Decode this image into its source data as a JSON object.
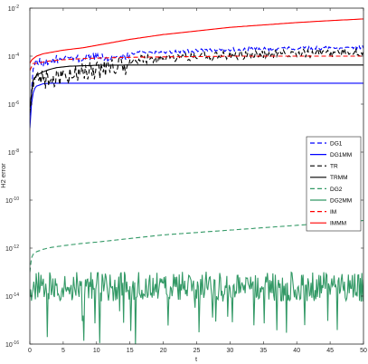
{
  "chart_data": {
    "type": "line",
    "title": "",
    "xlabel": "t",
    "ylabel": "H2 error",
    "xlim": [
      0,
      50
    ],
    "ylim_log10": [
      -16,
      -2
    ],
    "y_scale": "log",
    "grid": false,
    "legend_position": "right",
    "x_ticks": [
      {
        "value": 0,
        "label": "0"
      },
      {
        "value": 5,
        "label": "5"
      },
      {
        "value": 10,
        "label": "10"
      },
      {
        "value": 15,
        "label": "15"
      },
      {
        "value": 20,
        "label": "20"
      },
      {
        "value": 25,
        "label": "25"
      },
      {
        "value": 30,
        "label": "30"
      },
      {
        "value": 35,
        "label": "35"
      },
      {
        "value": 40,
        "label": "40"
      },
      {
        "value": 45,
        "label": "45"
      },
      {
        "value": 50,
        "label": "50"
      }
    ],
    "y_ticks": [
      {
        "exp": -16,
        "base": "10",
        "sup": "-16"
      },
      {
        "exp": -14,
        "base": "10",
        "sup": "-14"
      },
      {
        "exp": -12,
        "base": "10",
        "sup": "-12"
      },
      {
        "exp": -10,
        "base": "10",
        "sup": "-10"
      },
      {
        "exp": -8,
        "base": "10",
        "sup": "-8"
      },
      {
        "exp": -6,
        "base": "10",
        "sup": "-6"
      },
      {
        "exp": -4,
        "base": "10",
        "sup": "-4"
      },
      {
        "exp": -2,
        "base": "10",
        "sup": "-2"
      }
    ],
    "series": [
      {
        "name": "DG1",
        "color": "#0000ff",
        "dash": "dashed",
        "x": [
          0,
          0.5,
          1,
          1.5,
          2,
          2.5,
          3,
          4,
          5,
          6,
          8,
          10,
          12,
          15,
          20,
          25,
          30,
          35,
          40,
          45,
          50
        ],
        "y_log10": [
          -6.5,
          -4.3,
          -4.1,
          -4.05,
          -4.15,
          -4.0,
          -4.1,
          -3.95,
          -4.0,
          -3.9,
          -3.95,
          -3.85,
          -3.9,
          -3.8,
          -3.75,
          -3.7,
          -3.65,
          -3.62,
          -3.6,
          -3.58,
          -3.55
        ],
        "oscillation": 0.25
      },
      {
        "name": "DG1MM",
        "color": "#0000ff",
        "dash": "solid",
        "x": [
          0,
          0.3,
          0.6,
          1,
          1.5,
          2,
          3,
          50
        ],
        "y_log10": [
          -7.0,
          -5.8,
          -5.4,
          -5.25,
          -5.2,
          -5.15,
          -5.13,
          -5.13
        ],
        "oscillation": 0
      },
      {
        "name": "TR",
        "color": "#000000",
        "dash": "dashed",
        "x": [
          0,
          0.5,
          1,
          2,
          3,
          4,
          5,
          6,
          8,
          10,
          12,
          15,
          20,
          25,
          30,
          35,
          40,
          45,
          50
        ],
        "y_log10": [
          -6.0,
          -4.6,
          -4.5,
          -4.6,
          -4.55,
          -4.5,
          -4.45,
          -4.4,
          -4.3,
          -4.2,
          -4.1,
          -4.0,
          -3.9,
          -3.85,
          -3.8,
          -3.75,
          -3.7,
          -3.68,
          -3.65
        ],
        "oscillation": 0.6
      },
      {
        "name": "TRMM",
        "color": "#000000",
        "dash": "solid",
        "x": [
          0,
          0.5,
          1,
          2,
          3,
          4,
          6,
          8,
          10,
          15,
          50
        ],
        "y_log10": [
          -6.2,
          -5.0,
          -4.8,
          -4.65,
          -4.55,
          -4.48,
          -4.42,
          -4.4,
          -4.38,
          -4.37,
          -4.37
        ],
        "oscillation": 0
      },
      {
        "name": "DG2",
        "color": "#339966",
        "dash": "dashed",
        "x": [
          0,
          0.3,
          1,
          2,
          3,
          5,
          8,
          10,
          15,
          20,
          25,
          30,
          35,
          40,
          45,
          50
        ],
        "y_log10": [
          -13.0,
          -12.3,
          -12.15,
          -12.05,
          -11.98,
          -11.9,
          -11.8,
          -11.75,
          -11.6,
          -11.45,
          -11.35,
          -11.25,
          -11.15,
          -11.05,
          -10.95,
          -10.85
        ],
        "oscillation": 0
      },
      {
        "name": "DG2MM",
        "color": "#339966",
        "dash": "solid",
        "x": [
          0,
          50
        ],
        "y_log10": [
          -13.6,
          -13.6
        ],
        "oscillation": 0.9
      },
      {
        "name": "IM",
        "color": "#ff0000",
        "dash": "dashed",
        "x": [
          0,
          0.5,
          1,
          2,
          3,
          5,
          8,
          10,
          15,
          20,
          25,
          28,
          30,
          50
        ],
        "y_log10": [
          -4.6,
          -4.3,
          -4.3,
          -4.25,
          -4.2,
          -4.15,
          -4.1,
          -4.08,
          -4.05,
          -4.03,
          -4.02,
          -4.01,
          -4.0,
          -4.0
        ],
        "oscillation": 0
      },
      {
        "name": "IMMM",
        "color": "#ff0000",
        "dash": "solid",
        "x": [
          0,
          0.3,
          1,
          2,
          3,
          5,
          8,
          10,
          15,
          20,
          25,
          30,
          35,
          40,
          45,
          50
        ],
        "y_log10": [
          -4.3,
          -4.15,
          -4.0,
          -3.9,
          -3.85,
          -3.75,
          -3.65,
          -3.55,
          -3.3,
          -3.1,
          -2.95,
          -2.8,
          -2.7,
          -2.6,
          -2.52,
          -2.45
        ],
        "oscillation": 0
      }
    ]
  }
}
